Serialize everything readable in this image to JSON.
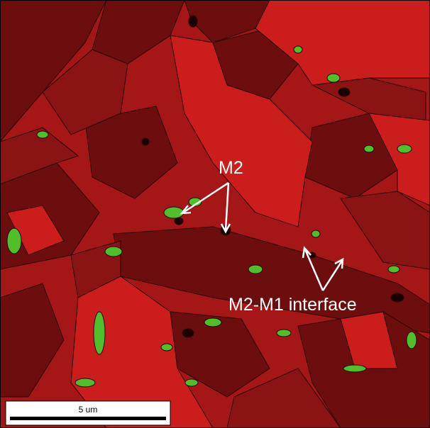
{
  "labels": {
    "m2": "M2",
    "interface": "M2-M1 interface"
  },
  "scale_bar": {
    "label": "5 um"
  }
}
